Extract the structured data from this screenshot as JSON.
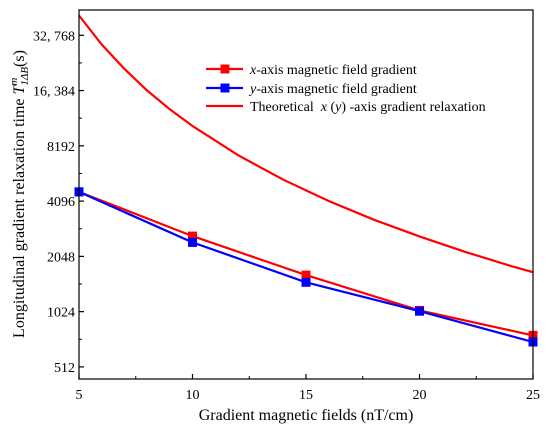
{
  "chart_data": {
    "type": "line",
    "xlabel": "Gradient magnetic fields (nT/cm)",
    "ylabel_main": "Longitudinal  gradient relaxation time ",
    "ylabel_symbol": "T",
    "ylabel_sup": "m",
    "ylabel_sub": "1ΔB",
    "ylabel_unit": "(s)",
    "y_scale": "log2",
    "xlim": [
      5,
      25
    ],
    "ylim": [
      440,
      45000
    ],
    "x_ticks": [
      5,
      10,
      15,
      20,
      25
    ],
    "y_ticks": [
      512,
      1024,
      2048,
      4096,
      8192,
      16384,
      32768
    ],
    "y_tick_labels": [
      "512",
      "1024",
      "2048",
      "4096",
      "8192",
      "16, 384",
      "32, 768"
    ],
    "grid": false,
    "legend_position": "top-right",
    "series": [
      {
        "name": "x-axis magnetic field gradient",
        "legend_italic": "x",
        "legend_rest": "-axis magnetic field gradient",
        "color": "#ff0000",
        "marker": "square",
        "x": [
          5,
          10,
          15,
          20,
          25
        ],
        "y": [
          4600,
          2640,
          1620,
          1040,
          760
        ]
      },
      {
        "name": "y-axis magnetic field gradient",
        "legend_italic": "y",
        "legend_rest": "-axis magnetic field gradient",
        "color": "#0000ff",
        "marker": "square",
        "x": [
          5,
          10,
          15,
          20,
          25
        ],
        "y": [
          4600,
          2440,
          1480,
          1030,
          700
        ]
      },
      {
        "name": "Theoretical x(y)-axis gradient relaxation",
        "legend_pre": "Theoretical  ",
        "legend_italic_a": "x",
        "legend_mid": " (",
        "legend_italic_b": "y",
        "legend_post": ") -axis gradient relaxation",
        "color": "#ff0000",
        "marker": "none",
        "x": [
          5,
          6,
          7,
          8,
          9,
          10,
          12,
          14,
          16,
          18,
          20,
          22,
          24,
          25
        ],
        "y": [
          42000,
          29200,
          21500,
          16400,
          12960,
          10500,
          7290,
          5360,
          4100,
          3240,
          2630,
          2170,
          1820,
          1680
        ]
      }
    ]
  }
}
